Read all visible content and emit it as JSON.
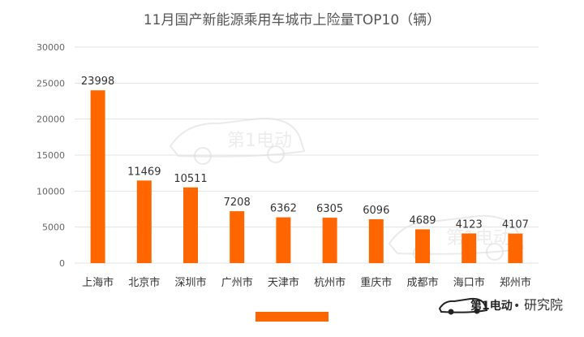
{
  "chart_data": {
    "type": "bar",
    "title": "11月国产新能源乘用车城市上险量TOP10（辆）",
    "categories": [
      "上海市",
      "北京市",
      "深圳市",
      "广州市",
      "天津市",
      "杭州市",
      "重庆市",
      "成都市",
      "海口市",
      "郑州市"
    ],
    "values": [
      23998,
      11469,
      10511,
      7208,
      6362,
      6305,
      6096,
      4689,
      4123,
      4107
    ],
    "ylim": [
      0,
      30000
    ],
    "yticks": [
      0,
      5000,
      10000,
      15000,
      20000,
      25000,
      30000
    ],
    "grid": true,
    "data_labels": true,
    "bar_color": "#ff6600"
  },
  "branding": {
    "text": "研究院",
    "dot": "•",
    "logo_text": "第1电动",
    "watermark_text": "第1电动"
  },
  "colors": {
    "bar": "#ff6600",
    "grid": "#e3e3e3",
    "text": "#333333",
    "title": "#555555"
  }
}
